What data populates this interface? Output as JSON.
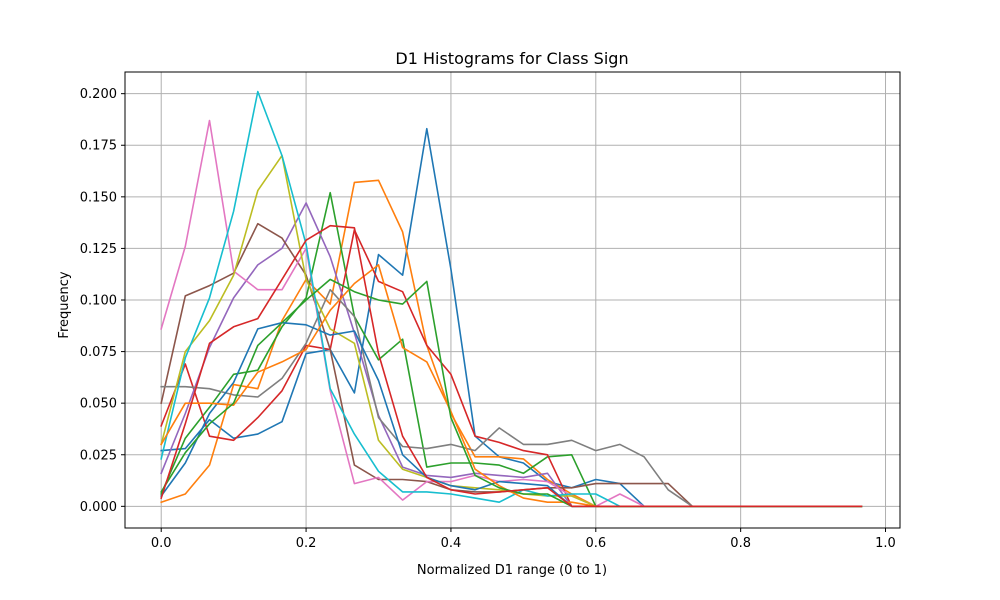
{
  "chart_data": {
    "type": "line",
    "title": "D1 Histograms for Class Sign",
    "xlabel": "Normalized D1 range (0 to 1)",
    "ylabel": "Frequency",
    "xlim": [
      -0.05,
      1.02
    ],
    "ylim": [
      -0.0105,
      0.2105
    ],
    "xticks": [
      0.0,
      0.2,
      0.4,
      0.6,
      0.8,
      1.0
    ],
    "xtick_labels": [
      "0.0",
      "0.2",
      "0.4",
      "0.6",
      "0.8",
      "1.0"
    ],
    "yticks": [
      0.0,
      0.025,
      0.05,
      0.075,
      0.1,
      0.125,
      0.15,
      0.175,
      0.2
    ],
    "ytick_labels": [
      "0.000",
      "0.025",
      "0.050",
      "0.075",
      "0.100",
      "0.125",
      "0.150",
      "0.175",
      "0.200"
    ],
    "grid": true,
    "x": [
      0.0,
      0.0333,
      0.0667,
      0.1,
      0.1333,
      0.1667,
      0.2,
      0.2333,
      0.2667,
      0.3,
      0.3333,
      0.3667,
      0.4,
      0.4333,
      0.4667,
      0.5,
      0.5333,
      0.5667,
      0.6,
      0.6333,
      0.6667,
      0.7,
      0.7333,
      0.7667,
      0.8,
      0.8333,
      0.8667,
      0.9,
      0.9333,
      0.9667
    ],
    "series": [
      {
        "color": "#1f77b4",
        "values": [
          0.027,
          0.028,
          0.042,
          0.033,
          0.035,
          0.041,
          0.074,
          0.076,
          0.055,
          0.122,
          0.112,
          0.183,
          0.115,
          0.034,
          0.024,
          0.021,
          0.012,
          0.009,
          0.013,
          0.011,
          0.0,
          0.0,
          0.0,
          0.0,
          0.0,
          0.0,
          0.0,
          0.0,
          0.0,
          0.0
        ]
      },
      {
        "color": "#ff7f0e",
        "values": [
          0.002,
          0.006,
          0.02,
          0.059,
          0.057,
          0.09,
          0.11,
          0.098,
          0.157,
          0.158,
          0.133,
          0.078,
          0.045,
          0.024,
          0.024,
          0.023,
          0.013,
          0.006,
          0.0,
          0.0,
          0.0,
          0.0,
          0.0,
          0.0,
          0.0,
          0.0,
          0.0,
          0.0,
          0.0,
          0.0
        ]
      },
      {
        "color": "#2ca02c",
        "values": [
          0.006,
          0.033,
          0.048,
          0.064,
          0.066,
          0.087,
          0.101,
          0.152,
          0.092,
          0.071,
          0.081,
          0.019,
          0.021,
          0.021,
          0.02,
          0.016,
          0.024,
          0.025,
          0.0,
          0.0,
          0.0,
          0.0,
          0.0,
          0.0,
          0.0,
          0.0,
          0.0,
          0.0,
          0.0,
          0.0
        ]
      },
      {
        "color": "#d62728",
        "values": [
          0.039,
          0.069,
          0.034,
          0.032,
          0.043,
          0.056,
          0.078,
          0.076,
          0.134,
          0.109,
          0.104,
          0.078,
          0.064,
          0.034,
          0.031,
          0.027,
          0.025,
          0.0,
          0.0,
          0.0,
          0.0,
          0.0,
          0.0,
          0.0,
          0.0,
          0.0,
          0.0,
          0.0,
          0.0,
          0.0
        ]
      },
      {
        "color": "#9467bd",
        "values": [
          0.016,
          0.045,
          0.077,
          0.101,
          0.117,
          0.125,
          0.147,
          0.121,
          0.084,
          0.044,
          0.019,
          0.015,
          0.014,
          0.016,
          0.015,
          0.014,
          0.016,
          0.0,
          0.0,
          0.0,
          0.0,
          0.0,
          0.0,
          0.0,
          0.0,
          0.0,
          0.0,
          0.0,
          0.0,
          0.0
        ]
      },
      {
        "color": "#8c564b",
        "values": [
          0.05,
          0.102,
          0.107,
          0.113,
          0.137,
          0.13,
          0.112,
          0.076,
          0.02,
          0.013,
          0.013,
          0.012,
          0.008,
          0.007,
          0.007,
          0.008,
          0.009,
          0.009,
          0.011,
          0.011,
          0.011,
          0.011,
          0.0,
          0.0,
          0.0,
          0.0,
          0.0,
          0.0,
          0.0,
          0.0
        ]
      },
      {
        "color": "#e377c2",
        "values": [
          0.086,
          0.126,
          0.187,
          0.114,
          0.105,
          0.105,
          0.125,
          0.056,
          0.011,
          0.014,
          0.003,
          0.012,
          0.012,
          0.015,
          0.012,
          0.013,
          0.012,
          0.005,
          0.0,
          0.006,
          0.0,
          0.0,
          0.0,
          0.0,
          0.0,
          0.0,
          0.0,
          0.0,
          0.0,
          0.0
        ]
      },
      {
        "color": "#7f7f7f",
        "values": [
          0.058,
          0.058,
          0.057,
          0.054,
          0.053,
          0.062,
          0.079,
          0.105,
          0.092,
          0.043,
          0.029,
          0.028,
          0.03,
          0.027,
          0.038,
          0.03,
          0.03,
          0.032,
          0.027,
          0.03,
          0.024,
          0.008,
          0.0,
          0.0,
          0.0,
          0.0,
          0.0,
          0.0,
          0.0,
          0.0
        ]
      },
      {
        "color": "#bcbd22",
        "values": [
          0.03,
          0.075,
          0.09,
          0.112,
          0.153,
          0.17,
          0.11,
          0.086,
          0.079,
          0.032,
          0.018,
          0.014,
          0.01,
          0.009,
          0.008,
          0.006,
          0.005,
          0.005,
          0.0,
          0.0,
          0.0,
          0.0,
          0.0,
          0.0,
          0.0,
          0.0,
          0.0,
          0.0,
          0.0,
          0.0
        ]
      },
      {
        "color": "#17becf",
        "values": [
          0.023,
          0.072,
          0.101,
          0.143,
          0.201,
          0.17,
          0.127,
          0.057,
          0.035,
          0.017,
          0.007,
          0.007,
          0.006,
          0.004,
          0.002,
          0.008,
          0.005,
          0.006,
          0.006,
          0.0,
          0.0,
          0.0,
          0.0,
          0.0,
          0.0,
          0.0,
          0.0,
          0.0,
          0.0,
          0.0
        ]
      },
      {
        "color": "#1f77b4",
        "values": [
          0.005,
          0.021,
          0.045,
          0.06,
          0.086,
          0.089,
          0.088,
          0.083,
          0.085,
          0.061,
          0.025,
          0.014,
          0.01,
          0.008,
          0.012,
          0.011,
          0.01,
          0.0,
          0.0,
          0.0,
          0.0,
          0.0,
          0.0,
          0.0,
          0.0,
          0.0,
          0.0,
          0.0,
          0.0,
          0.0
        ]
      },
      {
        "color": "#ff7f0e",
        "values": [
          0.03,
          0.05,
          0.05,
          0.049,
          0.065,
          0.07,
          0.076,
          0.095,
          0.108,
          0.117,
          0.077,
          0.07,
          0.046,
          0.018,
          0.01,
          0.004,
          0.002,
          0.002,
          0.0,
          0.0,
          0.0,
          0.0,
          0.0,
          0.0,
          0.0,
          0.0,
          0.0,
          0.0,
          0.0,
          0.0
        ]
      },
      {
        "color": "#2ca02c",
        "values": [
          0.007,
          0.026,
          0.04,
          0.05,
          0.078,
          0.089,
          0.1,
          0.11,
          0.104,
          0.1,
          0.098,
          0.109,
          0.043,
          0.015,
          0.009,
          0.006,
          0.006,
          0.0,
          0.0,
          0.0,
          0.0,
          0.0,
          0.0,
          0.0,
          0.0,
          0.0,
          0.0,
          0.0,
          0.0,
          0.0
        ]
      },
      {
        "color": "#d62728",
        "values": [
          0.004,
          0.04,
          0.079,
          0.087,
          0.091,
          0.11,
          0.129,
          0.136,
          0.135,
          0.074,
          0.034,
          0.014,
          0.008,
          0.006,
          0.007,
          0.008,
          0.009,
          0.0,
          0.0,
          0.0,
          0.0,
          0.0,
          0.0,
          0.0,
          0.0,
          0.0,
          0.0,
          0.0,
          0.0,
          0.0
        ]
      }
    ]
  }
}
